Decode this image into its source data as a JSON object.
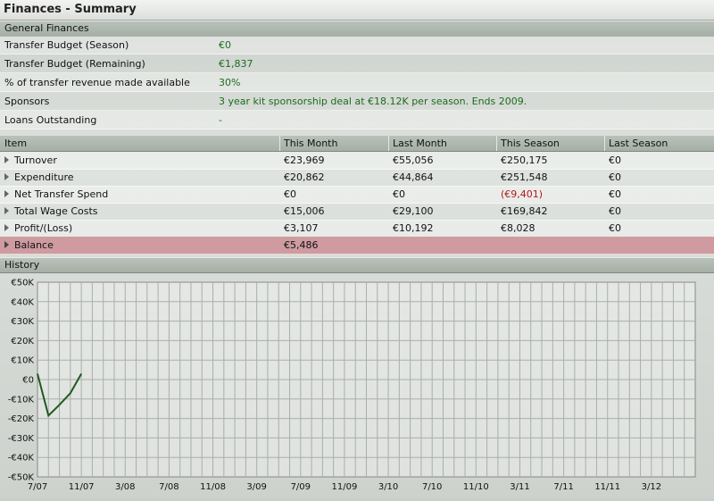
{
  "window": {
    "title": "Finances - Summary"
  },
  "general": {
    "header": "General Finances",
    "rows": [
      {
        "label": "Transfer Budget (Season)",
        "value": "€0"
      },
      {
        "label": "Transfer Budget (Remaining)",
        "value": "€1,837"
      },
      {
        "label": "% of transfer revenue made available",
        "value": "30%"
      },
      {
        "label": "Sponsors",
        "value": "3 year kit sponsorship deal at €18.12K per season. Ends 2009."
      },
      {
        "label": "Loans Outstanding",
        "value": "-"
      }
    ]
  },
  "table": {
    "columns": [
      "Item",
      "This Month",
      "Last Month",
      "This Season",
      "Last Season"
    ],
    "rows": [
      {
        "item": "Turnover",
        "this_month": "€23,969",
        "last_month": "€55,056",
        "this_season": "€250,175",
        "last_season": "€0"
      },
      {
        "item": "Expenditure",
        "this_month": "€20,862",
        "last_month": "€44,864",
        "this_season": "€251,548",
        "last_season": "€0"
      },
      {
        "item": "Net Transfer Spend",
        "this_month": "€0",
        "last_month": "€0",
        "this_season": "(€9,401)",
        "last_season": "€0"
      },
      {
        "item": "Total Wage Costs",
        "this_month": "€15,006",
        "last_month": "€29,100",
        "this_season": "€169,842",
        "last_season": "€0"
      },
      {
        "item": "Profit/(Loss)",
        "this_month": "€3,107",
        "last_month": "€10,192",
        "this_season": "€8,028",
        "last_season": "€0"
      },
      {
        "item": "Balance",
        "this_month": "€5,486",
        "last_month": "",
        "this_season": "",
        "last_season": ""
      }
    ]
  },
  "history": {
    "header": "History"
  },
  "chart_data": {
    "type": "line",
    "title": "",
    "xlabel": "",
    "ylabel": "",
    "ylim": [
      -50000,
      50000
    ],
    "y_ticks": [
      50000,
      40000,
      30000,
      20000,
      10000,
      0,
      -10000,
      -20000,
      -30000,
      -40000,
      -50000
    ],
    "y_tick_labels": [
      "€50K",
      "€40K",
      "€30K",
      "€20K",
      "€10K",
      "€0",
      "-€10K",
      "-€20K",
      "-€30K",
      "-€40K",
      "-€50K"
    ],
    "x_tick_labels": [
      "7/07",
      "11/07",
      "3/08",
      "7/08",
      "11/08",
      "3/09",
      "7/09",
      "11/09",
      "3/10",
      "7/10",
      "11/10",
      "3/11",
      "7/11",
      "11/11",
      "3/12"
    ],
    "x_months_total": 60,
    "grid": true,
    "series": [
      {
        "color": "#1f5a1f",
        "x": [
          0,
          1,
          2,
          3,
          4
        ],
        "values": [
          3000,
          -18500,
          -13000,
          -7000,
          3000
        ]
      }
    ]
  },
  "colors": {
    "line": "#1f5a1f",
    "negative": "#b2181a",
    "positive": "#1c6b1c",
    "balance_row": "#cf9ba0"
  }
}
